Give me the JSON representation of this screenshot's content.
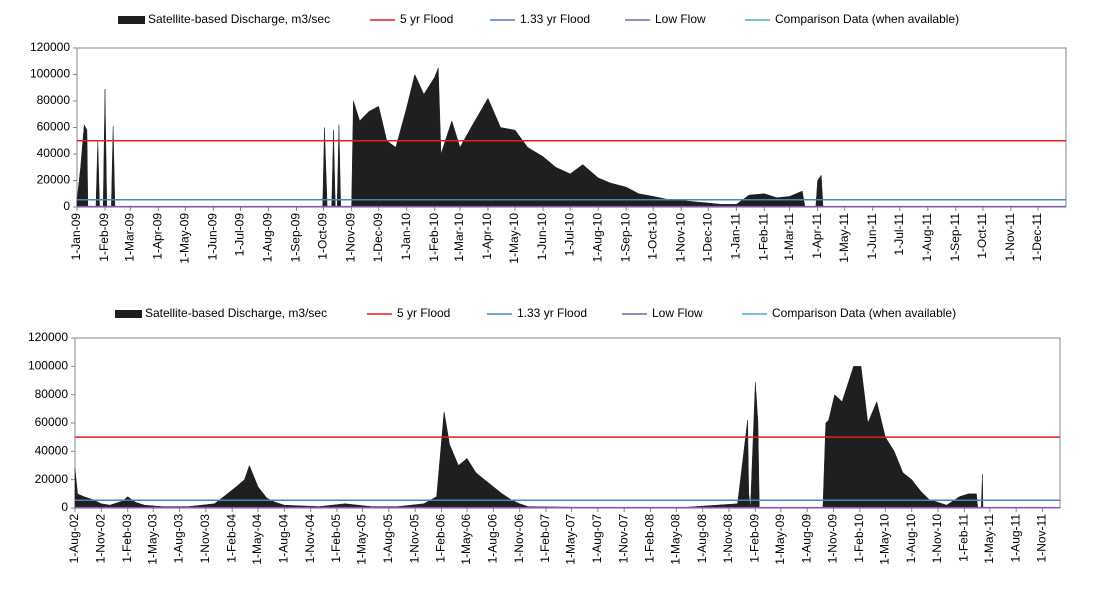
{
  "chart_data": [
    {
      "type": "area",
      "xlim": [
        "2009-01-01",
        "2012-01-01"
      ],
      "xticks": [
        {
          "value": "2009-01-01",
          "label": "1-Jan-09"
        },
        {
          "value": "2009-02-01",
          "label": "1-Feb-09"
        },
        {
          "value": "2009-03-01",
          "label": "1-Mar-09"
        },
        {
          "value": "2009-04-01",
          "label": "1-Apr-09"
        },
        {
          "value": "2009-05-01",
          "label": "1-May-09"
        },
        {
          "value": "2009-06-01",
          "label": "1-Jun-09"
        },
        {
          "value": "2009-07-01",
          "label": "1-Jul-09"
        },
        {
          "value": "2009-08-01",
          "label": "1-Aug-09"
        },
        {
          "value": "2009-09-01",
          "label": "1-Sep-09"
        },
        {
          "value": "2009-10-01",
          "label": "1-Oct-09"
        },
        {
          "value": "2009-11-01",
          "label": "1-Nov-09"
        },
        {
          "value": "2009-12-01",
          "label": "1-Dec-09"
        },
        {
          "value": "2010-01-01",
          "label": "1-Jan-10"
        },
        {
          "value": "2010-02-01",
          "label": "1-Feb-10"
        },
        {
          "value": "2010-03-01",
          "label": "1-Mar-10"
        },
        {
          "value": "2010-04-01",
          "label": "1-Apr-10"
        },
        {
          "value": "2010-05-01",
          "label": "1-May-10"
        },
        {
          "value": "2010-06-01",
          "label": "1-Jun-10"
        },
        {
          "value": "2010-07-01",
          "label": "1-Jul-10"
        },
        {
          "value": "2010-08-01",
          "label": "1-Aug-10"
        },
        {
          "value": "2010-09-01",
          "label": "1-Sep-10"
        },
        {
          "value": "2010-10-01",
          "label": "1-Oct-10"
        },
        {
          "value": "2010-11-01",
          "label": "1-Nov-10"
        },
        {
          "value": "2010-12-01",
          "label": "1-Dec-10"
        },
        {
          "value": "2011-01-01",
          "label": "1-Jan-11"
        },
        {
          "value": "2011-02-01",
          "label": "1-Feb-11"
        },
        {
          "value": "2011-03-01",
          "label": "1-Mar-11"
        },
        {
          "value": "2011-04-01",
          "label": "1-Apr-11"
        },
        {
          "value": "2011-05-01",
          "label": "1-May-11"
        },
        {
          "value": "2011-06-01",
          "label": "1-Jun-11"
        },
        {
          "value": "2011-07-01",
          "label": "1-Jul-11"
        },
        {
          "value": "2011-08-01",
          "label": "1-Aug-11"
        },
        {
          "value": "2011-09-01",
          "label": "1-Sep-11"
        },
        {
          "value": "2011-10-01",
          "label": "1-Oct-11"
        },
        {
          "value": "2011-11-01",
          "label": "1-Nov-11"
        },
        {
          "value": "2011-12-01",
          "label": "1-Dec-11"
        }
      ],
      "ylim": [
        0,
        120000
      ],
      "yticks": [
        0,
        20000,
        40000,
        60000,
        80000,
        100000,
        120000
      ],
      "series": [
        {
          "name": "Satellite-based Discharge, m3/sec",
          "color": "#1f1f1f",
          "x": [
            "2009-01-01",
            "2009-01-05",
            "2009-01-09",
            "2009-01-12",
            "2009-01-13",
            "2009-01-22",
            "2009-01-24",
            "2009-01-26",
            "2009-01-30",
            "2009-02-01",
            "2009-02-03",
            "2009-02-08",
            "2009-02-10",
            "2009-02-12",
            "2009-09-30",
            "2009-10-02",
            "2009-10-05",
            "2009-10-10",
            "2009-10-12",
            "2009-10-14",
            "2009-10-16",
            "2009-10-18",
            "2009-10-20",
            "2009-11-01",
            "2009-11-03",
            "2009-11-10",
            "2009-11-20",
            "2009-12-01",
            "2009-12-10",
            "2009-12-20",
            "2010-01-01",
            "2010-01-10",
            "2010-01-20",
            "2010-02-01",
            "2010-02-05",
            "2010-02-08",
            "2010-02-20",
            "2010-03-01",
            "2010-03-15",
            "2010-04-01",
            "2010-04-15",
            "2010-05-01",
            "2010-05-15",
            "2010-06-01",
            "2010-06-15",
            "2010-07-01",
            "2010-07-15",
            "2010-08-01",
            "2010-08-15",
            "2010-09-01",
            "2010-09-15",
            "2010-10-01",
            "2010-10-15",
            "2010-11-01",
            "2010-11-15",
            "2010-12-01",
            "2010-12-15",
            "2011-01-01",
            "2011-01-15",
            "2011-02-01",
            "2011-02-15",
            "2011-03-01",
            "2011-03-15",
            "2011-03-18",
            "2011-03-30",
            "2011-04-01",
            "2011-04-05",
            "2011-04-07"
          ],
          "values": [
            5000,
            30000,
            62000,
            58000,
            0,
            0,
            50000,
            0,
            0,
            89000,
            0,
            0,
            61000,
            0,
            0,
            60000,
            0,
            0,
            58000,
            0,
            0,
            62000,
            0,
            0,
            80000,
            65000,
            72000,
            76000,
            50000,
            45000,
            75000,
            100000,
            85000,
            98000,
            105000,
            40000,
            65000,
            45000,
            62000,
            82000,
            60000,
            58000,
            45000,
            38000,
            30000,
            25000,
            32000,
            22000,
            18000,
            15000,
            10000,
            8000,
            6000,
            5000,
            4000,
            3000,
            2000,
            2000,
            9000,
            10000,
            7000,
            8000,
            12000,
            0,
            0,
            20000,
            24000,
            0
          ]
        },
        {
          "name": "5 yr Flood",
          "color": "#e02020",
          "x": [
            "2009-01-01",
            "2012-01-01"
          ],
          "values": [
            50000,
            50000
          ]
        },
        {
          "name": "1.33 yr Flood",
          "color": "#4f81bd",
          "x": [
            "2009-01-01",
            "2012-01-01"
          ],
          "values": [
            5500,
            5500
          ]
        },
        {
          "name": "Low Flow",
          "color": "#7f5fa8",
          "x": [
            "2009-01-01",
            "2012-01-01"
          ],
          "values": [
            300,
            300
          ]
        },
        {
          "name": "Comparison Data (when available)",
          "color": "#4bacc6",
          "x": [
            "2009-01-01",
            "2012-01-01"
          ],
          "values": [
            null,
            null
          ]
        }
      ]
    },
    {
      "type": "area",
      "xlim": [
        "2002-08-01",
        "2012-01-01"
      ],
      "xticks": [
        {
          "value": "2002-08-01",
          "label": "1-Aug-02"
        },
        {
          "value": "2002-11-01",
          "label": "1-Nov-02"
        },
        {
          "value": "2003-02-01",
          "label": "1-Feb-03"
        },
        {
          "value": "2003-05-01",
          "label": "1-May-03"
        },
        {
          "value": "2003-08-01",
          "label": "1-Aug-03"
        },
        {
          "value": "2003-11-01",
          "label": "1-Nov-03"
        },
        {
          "value": "2004-02-01",
          "label": "1-Feb-04"
        },
        {
          "value": "2004-05-01",
          "label": "1-May-04"
        },
        {
          "value": "2004-08-01",
          "label": "1-Aug-04"
        },
        {
          "value": "2004-11-01",
          "label": "1-Nov-04"
        },
        {
          "value": "2005-02-01",
          "label": "1-Feb-05"
        },
        {
          "value": "2005-05-01",
          "label": "1-May-05"
        },
        {
          "value": "2005-08-01",
          "label": "1-Aug-05"
        },
        {
          "value": "2005-11-01",
          "label": "1-Nov-05"
        },
        {
          "value": "2006-02-01",
          "label": "1-Feb-06"
        },
        {
          "value": "2006-05-01",
          "label": "1-May-06"
        },
        {
          "value": "2006-08-01",
          "label": "1-Aug-06"
        },
        {
          "value": "2006-11-01",
          "label": "1-Nov-06"
        },
        {
          "value": "2007-02-01",
          "label": "1-Feb-07"
        },
        {
          "value": "2007-05-01",
          "label": "1-May-07"
        },
        {
          "value": "2007-08-01",
          "label": "1-Aug-07"
        },
        {
          "value": "2007-11-01",
          "label": "1-Nov-07"
        },
        {
          "value": "2008-02-01",
          "label": "1-Feb-08"
        },
        {
          "value": "2008-05-01",
          "label": "1-May-08"
        },
        {
          "value": "2008-08-01",
          "label": "1-Aug-08"
        },
        {
          "value": "2008-11-01",
          "label": "1-Nov-08"
        },
        {
          "value": "2009-02-01",
          "label": "1-Feb-09"
        },
        {
          "value": "2009-05-01",
          "label": "1-May-09"
        },
        {
          "value": "2009-08-01",
          "label": "1-Aug-09"
        },
        {
          "value": "2009-11-01",
          "label": "1-Nov-09"
        },
        {
          "value": "2010-02-01",
          "label": "1-Feb-10"
        },
        {
          "value": "2010-05-01",
          "label": "1-May-10"
        },
        {
          "value": "2010-08-01",
          "label": "1-Aug-10"
        },
        {
          "value": "2010-11-01",
          "label": "1-Nov-10"
        },
        {
          "value": "2011-02-01",
          "label": "1-Feb-11"
        },
        {
          "value": "2011-05-01",
          "label": "1-May-11"
        },
        {
          "value": "2011-08-01",
          "label": "1-Aug-11"
        },
        {
          "value": "2011-11-01",
          "label": "1-Nov-11"
        }
      ],
      "ylim": [
        0,
        120000
      ],
      "yticks": [
        0,
        20000,
        40000,
        60000,
        80000,
        100000,
        120000
      ],
      "series": [
        {
          "name": "Satellite-based Discharge, m3/sec",
          "color": "#1f1f1f",
          "x": [
            "2002-08-01",
            "2002-08-10",
            "2002-09-01",
            "2002-10-01",
            "2002-11-01",
            "2002-12-01",
            "2003-01-15",
            "2003-02-01",
            "2003-03-01",
            "2003-04-01",
            "2003-06-01",
            "2003-09-01",
            "2003-12-01",
            "2004-01-15",
            "2004-02-15",
            "2004-03-15",
            "2004-04-01",
            "2004-05-01",
            "2004-06-01",
            "2004-07-01",
            "2004-08-01",
            "2004-12-01",
            "2005-01-15",
            "2005-03-01",
            "2005-06-01",
            "2005-09-01",
            "2005-12-01",
            "2006-01-15",
            "2006-02-10",
            "2006-03-01",
            "2006-04-01",
            "2006-05-01",
            "2006-06-01",
            "2006-07-01",
            "2006-08-01",
            "2006-09-01",
            "2006-10-01",
            "2006-11-01",
            "2006-12-01",
            "2007-06-01",
            "2008-06-01",
            "2008-12-01",
            "2009-01-05",
            "2009-01-09",
            "2009-01-15",
            "2009-02-01",
            "2009-02-10",
            "2009-02-15",
            "2009-09-25",
            "2009-10-05",
            "2009-10-15",
            "2009-11-05",
            "2009-12-01",
            "2010-01-10",
            "2010-02-05",
            "2010-03-01",
            "2010-04-01",
            "2010-05-01",
            "2010-06-01",
            "2010-07-01",
            "2010-08-01",
            "2010-09-01",
            "2010-10-01",
            "2010-11-01",
            "2010-12-01",
            "2011-01-15",
            "2011-02-15",
            "2011-03-15",
            "2011-03-20",
            "2011-04-01",
            "2011-04-05",
            "2011-04-07"
          ],
          "values": [
            28000,
            10000,
            8000,
            6000,
            3000,
            2000,
            5000,
            8000,
            4000,
            2000,
            1000,
            1000,
            3000,
            10000,
            15000,
            20000,
            30000,
            15000,
            7000,
            4000,
            2000,
            1000,
            2000,
            3000,
            1000,
            1000,
            3000,
            8000,
            68000,
            45000,
            30000,
            35000,
            25000,
            20000,
            15000,
            10000,
            6000,
            3000,
            1000,
            500,
            500,
            3000,
            62000,
            10000,
            0,
            89000,
            61000,
            0,
            0,
            60000,
            62000,
            80000,
            75000,
            100000,
            100000,
            60000,
            75000,
            50000,
            40000,
            25000,
            20000,
            12000,
            6000,
            4000,
            2000,
            8000,
            10000,
            10000,
            0,
            0,
            24000,
            0
          ]
        },
        {
          "name": "5 yr Flood",
          "color": "#e02020",
          "x": [
            "2002-08-01",
            "2012-01-01"
          ],
          "values": [
            50000,
            50000
          ]
        },
        {
          "name": "1.33 yr Flood",
          "color": "#4f81bd",
          "x": [
            "2002-08-01",
            "2012-01-01"
          ],
          "values": [
            5500,
            5500
          ]
        },
        {
          "name": "Low Flow",
          "color": "#7f5fa8",
          "x": [
            "2002-08-01",
            "2012-01-01"
          ],
          "values": [
            300,
            300
          ]
        },
        {
          "name": "Comparison Data (when available)",
          "color": "#4bacc6",
          "x": [
            "2002-08-01",
            "2012-01-01"
          ],
          "values": [
            null,
            null
          ]
        }
      ]
    }
  ]
}
